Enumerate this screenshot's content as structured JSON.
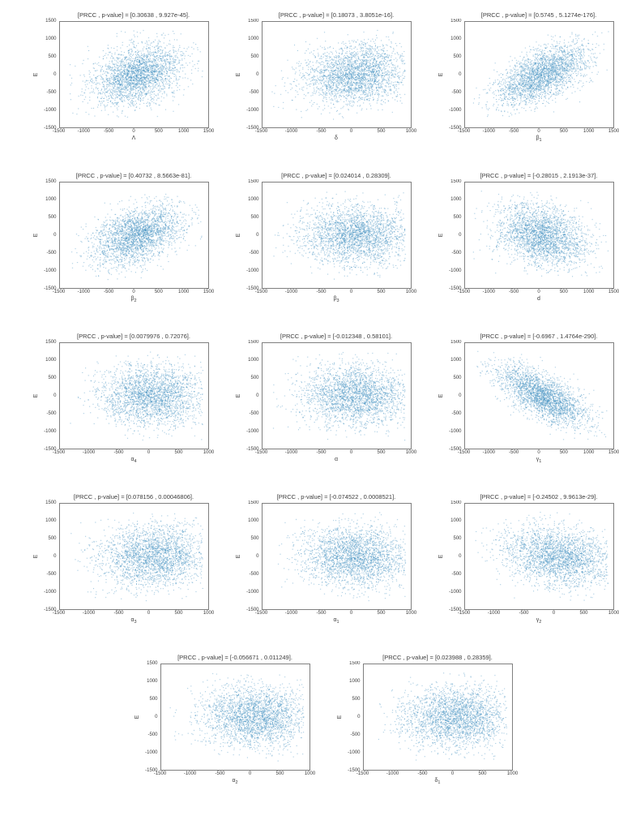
{
  "figure": {
    "background": "#ffffff",
    "point_color": "#418fc0",
    "point_alpha": 0.6,
    "axis_color": "#7f7f7f",
    "text_color": "#3c3c3c"
  },
  "layout": {
    "rows": [
      [
        0,
        1,
        2
      ],
      [
        3,
        4,
        5
      ],
      [
        6,
        7,
        8
      ],
      [
        9,
        10,
        11
      ],
      [
        12,
        13
      ]
    ]
  },
  "chart_data": [
    {
      "type": "scatter",
      "title": "[PRCC , p-value] = [0.30638 , 9.927e-45].",
      "xlabel": "Λ",
      "xsub": "",
      "ylabel": "E",
      "prcc": 0.30638,
      "xlim": [
        -1500,
        1500
      ],
      "ylim": [
        -1500,
        1500
      ],
      "xticks": [
        -1500,
        -1000,
        -500,
        0,
        500,
        1000,
        1500
      ],
      "yticks": [
        1500,
        1000,
        500,
        0,
        -500,
        -1000,
        -1500
      ],
      "n_points": 2600
    },
    {
      "type": "scatter",
      "title": "[PRCC , p-value] = [0.18073 , 3.8051e-16].",
      "xlabel": "δ",
      "xsub": "",
      "ylabel": "E",
      "prcc": 0.18073,
      "xlim": [
        -1500,
        1000
      ],
      "ylim": [
        -1500,
        1500
      ],
      "xticks": [
        -1500,
        -1000,
        -500,
        0,
        500,
        1000
      ],
      "yticks": [
        1500,
        1000,
        500,
        0,
        -500,
        -1000,
        -1500
      ],
      "n_points": 2600
    },
    {
      "type": "scatter",
      "title": "[PRCC , p-value] = [0.5745 , 5.1274e-176].",
      "xlabel": "β",
      "xsub": "1",
      "ylabel": "E",
      "prcc": 0.5745,
      "xlim": [
        -1500,
        1500
      ],
      "ylim": [
        -1500,
        1500
      ],
      "xticks": [
        -1500,
        -1000,
        -500,
        0,
        500,
        1000,
        1500
      ],
      "yticks": [
        1500,
        1000,
        500,
        0,
        -500,
        -1000,
        -1500
      ],
      "n_points": 2600
    },
    {
      "type": "scatter",
      "title": "[PRCC , p-value] = [0.40732 , 8.5663e-81].",
      "xlabel": "β",
      "xsub": "2",
      "ylabel": "E",
      "prcc": 0.40732,
      "xlim": [
        -1500,
        1500
      ],
      "ylim": [
        -1500,
        1500
      ],
      "xticks": [
        -1500,
        -1000,
        -500,
        0,
        500,
        1000,
        1500
      ],
      "yticks": [
        1500,
        1000,
        500,
        0,
        -500,
        -1000,
        -1500
      ],
      "n_points": 2600
    },
    {
      "type": "scatter",
      "title": "[PRCC , p-value] = [0.024014 , 0.28309].",
      "xlabel": "β",
      "xsub": "3",
      "ylabel": "E",
      "prcc": 0.024014,
      "xlim": [
        -1500,
        1000
      ],
      "ylim": [
        -1500,
        1500
      ],
      "xticks": [
        -1500,
        -1000,
        -500,
        0,
        500,
        1000
      ],
      "yticks": [
        1500,
        1000,
        500,
        0,
        -500,
        -1000,
        -1500
      ],
      "n_points": 2600
    },
    {
      "type": "scatter",
      "title": "[PRCC , p-value] = [-0.28015 , 2.1913e-37].",
      "xlabel": "d",
      "xsub": "",
      "ylabel": "E",
      "prcc": -0.28015,
      "xlim": [
        -1500,
        1500
      ],
      "ylim": [
        -1500,
        1500
      ],
      "xticks": [
        -1500,
        -1000,
        -500,
        0,
        500,
        1000,
        1500
      ],
      "yticks": [
        1500,
        1000,
        500,
        0,
        -500,
        -1000,
        -1500
      ],
      "n_points": 2600
    },
    {
      "type": "scatter",
      "title": "[PRCC , p-value] = [0.0079976 , 0.72076].",
      "xlabel": "α",
      "xsub": "4",
      "ylabel": "E",
      "prcc": 0.0079976,
      "xlim": [
        -1500,
        1000
      ],
      "ylim": [
        -1500,
        1500
      ],
      "xticks": [
        -1500,
        -1000,
        -500,
        0,
        500,
        1000
      ],
      "yticks": [
        1500,
        1000,
        500,
        0,
        -500,
        -1000,
        -1500
      ],
      "n_points": 2600
    },
    {
      "type": "scatter",
      "title": "[PRCC , p-value] = [-0.012348 , 0.58101].",
      "xlabel": "α",
      "xsub": "",
      "ylabel": "E",
      "prcc": -0.012348,
      "xlim": [
        -1500,
        1000
      ],
      "ylim": [
        -1500,
        1500
      ],
      "xticks": [
        -1500,
        -1000,
        -500,
        0,
        500,
        1000
      ],
      "yticks": [
        1500,
        1000,
        500,
        0,
        -500,
        -1000,
        -1500
      ],
      "n_points": 2600
    },
    {
      "type": "scatter",
      "title": "[PRCC , p-value] = [-0.6967 , 1.4764e-290].",
      "xlabel": "γ",
      "xsub": "1",
      "ylabel": "E",
      "prcc": -0.6967,
      "xlim": [
        -1500,
        1500
      ],
      "ylim": [
        -1500,
        1500
      ],
      "xticks": [
        -1500,
        -1000,
        -500,
        0,
        500,
        1000,
        1500
      ],
      "yticks": [
        1500,
        1000,
        500,
        0,
        -500,
        -1000,
        -1500
      ],
      "n_points": 2600
    },
    {
      "type": "scatter",
      "title": "[PRCC , p-value] = [0.078156 , 0.00046806].",
      "xlabel": "α",
      "xsub": "3",
      "ylabel": "E",
      "prcc": 0.078156,
      "xlim": [
        -1500,
        1000
      ],
      "ylim": [
        -1500,
        1500
      ],
      "xticks": [
        -1500,
        -1000,
        -500,
        0,
        500,
        1000
      ],
      "yticks": [
        1500,
        1000,
        500,
        0,
        -500,
        -1000,
        -1500
      ],
      "n_points": 2600
    },
    {
      "type": "scatter",
      "title": "[PRCC , p-value] = [-0.074522 , 0.0008521].",
      "xlabel": "α",
      "xsub": "1",
      "ylabel": "E",
      "prcc": -0.074522,
      "xlim": [
        -1500,
        1000
      ],
      "ylim": [
        -1500,
        1500
      ],
      "xticks": [
        -1500,
        -1000,
        -500,
        0,
        500,
        1000
      ],
      "yticks": [
        1500,
        1000,
        500,
        0,
        -500,
        -1000,
        -1500
      ],
      "n_points": 2600
    },
    {
      "type": "scatter",
      "title": "[PRCC , p-value] = [-0.24502 , 9.9613e-29].",
      "xlabel": "γ",
      "xsub": "2",
      "ylabel": "E",
      "prcc": -0.24502,
      "xlim": [
        -1500,
        1000
      ],
      "ylim": [
        -1500,
        1500
      ],
      "xticks": [
        -1500,
        -1000,
        -500,
        0,
        500,
        1000
      ],
      "yticks": [
        1500,
        1000,
        500,
        0,
        -500,
        -1000,
        -1500
      ],
      "n_points": 2600
    },
    {
      "type": "scatter",
      "title": "[PRCC , p-value] = [-0.056671 , 0.011249].",
      "xlabel": "α",
      "xsub": "2",
      "ylabel": "E",
      "prcc": -0.056671,
      "xlim": [
        -1500,
        1000
      ],
      "ylim": [
        -1500,
        1500
      ],
      "xticks": [
        -1500,
        -1000,
        -500,
        0,
        500,
        1000
      ],
      "yticks": [
        1500,
        1000,
        500,
        0,
        -500,
        -1000,
        -1500
      ],
      "n_points": 2600
    },
    {
      "type": "scatter",
      "title": "[PRCC , p-value] = [0.023988 , 0.28359].",
      "xlabel": "δ",
      "xsub": "1",
      "ylabel": "E",
      "prcc": 0.023988,
      "xlim": [
        -1500,
        1000
      ],
      "ylim": [
        -1500,
        1500
      ],
      "xticks": [
        -1500,
        -1000,
        -500,
        0,
        500,
        1000
      ],
      "yticks": [
        1500,
        1000,
        500,
        0,
        -500,
        -1000,
        -1500
      ],
      "n_points": 2600
    }
  ]
}
